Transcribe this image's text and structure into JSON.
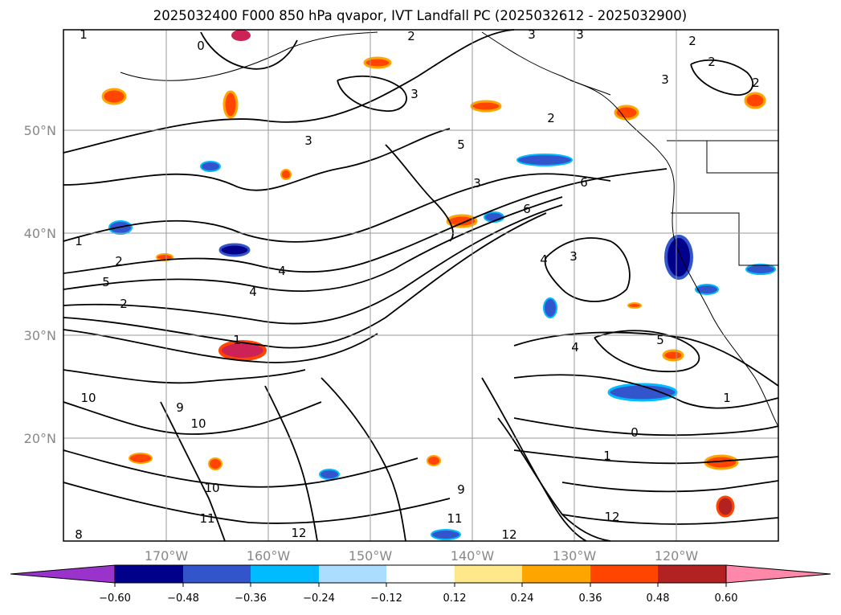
{
  "title": "2025032400 F000 850 hPa qvapor, IVT Landfall PC (2025032612 - 2025032900)",
  "lat_labels": [
    "50°N",
    "40°N",
    "30°N",
    "20°N"
  ],
  "lon_labels": [
    "170°W",
    "160°W",
    "150°W",
    "140°W",
    "130°W",
    "120°W"
  ],
  "colorbar": {
    "tick_labels": [
      "−0.60",
      "−0.48",
      "−0.36",
      "−0.24",
      "−0.12",
      "0.12",
      "0.24",
      "0.36",
      "0.48",
      "0.60"
    ],
    "extend_min_color": "#9933cc",
    "extend_max_color": "#ff88aa",
    "bin_colors": [
      "#00008b",
      "#3355cc",
      "#00bbff",
      "#aaddff",
      "#ffffff",
      "#ffe88a",
      "#ffa500",
      "#ff4500",
      "#b22222"
    ]
  },
  "contour_labels": [
    "1",
    "0",
    "2",
    "3",
    "3",
    "2",
    "2",
    "2",
    "3",
    "3",
    "5",
    "3",
    "3",
    "6",
    "4",
    "2",
    "1",
    "2",
    "5",
    "2",
    "4",
    "4",
    "1",
    "3",
    "4",
    "5",
    "6",
    "1",
    "10",
    "9",
    "10",
    "0",
    "1",
    "12",
    "12",
    "11",
    "11",
    "12",
    "10",
    "9",
    "8"
  ],
  "map_colors": {
    "negative_strong": "#00008b",
    "negative_mid": "#3355cc",
    "negative_light": "#00bbff",
    "positive_light": "#ffe88a",
    "positive_mid": "#ffa500",
    "positive_strong": "#ff4500",
    "positive_max": "#cc2255"
  }
}
